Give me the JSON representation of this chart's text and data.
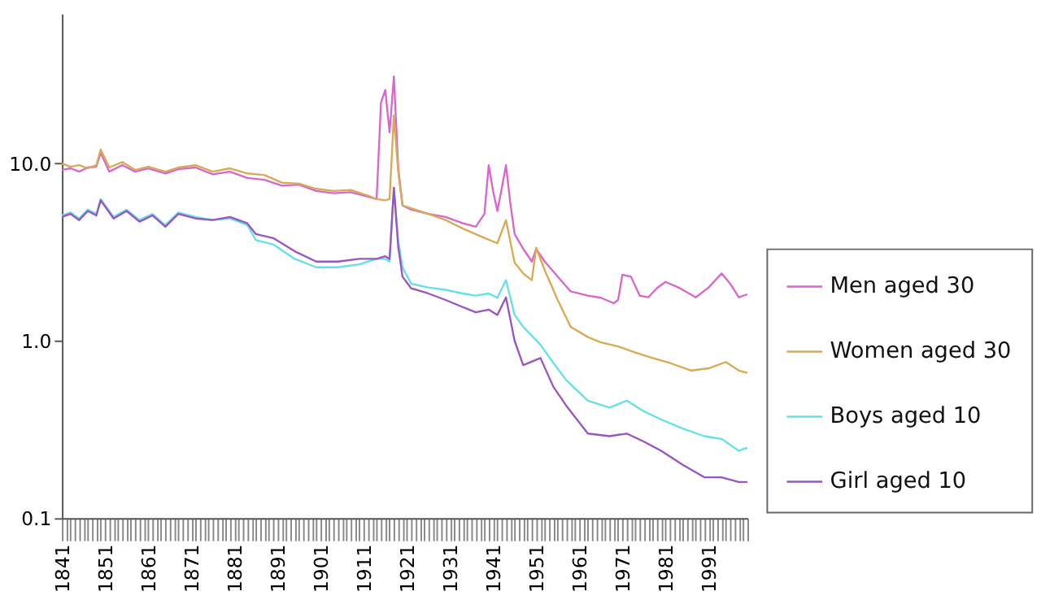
{
  "chart_data": {
    "type": "line",
    "log": "y",
    "grid": false,
    "legend": "right",
    "marker": "none",
    "line_style": "solid",
    "xlim": [
      1841,
      2000
    ],
    "ylim": [
      0.1,
      70
    ],
    "yticks": [
      {
        "value": 0.1,
        "label": "0.1"
      },
      {
        "value": 1,
        "label": "1.0"
      },
      {
        "value": 10,
        "label": "10.0"
      }
    ],
    "xticks": [
      1841,
      {
        "value": 1842,
        "label": null
      },
      {
        "value": 1843,
        "label": null
      },
      {
        "value": 1844,
        "label": null
      },
      {
        "value": 1845,
        "label": null
      },
      {
        "value": 1846,
        "label": null
      },
      {
        "value": 1847,
        "label": null
      },
      {
        "value": 1848,
        "label": null
      },
      {
        "value": 1849,
        "label": null
      },
      {
        "value": 1850,
        "label": null
      },
      1851,
      {
        "value": 1852,
        "label": null
      },
      {
        "value": 1853,
        "label": null
      },
      {
        "value": 1854,
        "label": null
      },
      {
        "value": 1855,
        "label": null
      },
      {
        "value": 1856,
        "label": null
      },
      {
        "value": 1857,
        "label": null
      },
      {
        "value": 1858,
        "label": null
      },
      {
        "value": 1859,
        "label": null
      },
      {
        "value": 1860,
        "label": null
      },
      1861,
      {
        "value": 1862,
        "label": null
      },
      {
        "value": 1863,
        "label": null
      },
      {
        "value": 1864,
        "label": null
      },
      {
        "value": 1865,
        "label": null
      },
      {
        "value": 1866,
        "label": null
      },
      {
        "value": 1867,
        "label": null
      },
      {
        "value": 1868,
        "label": null
      },
      {
        "value": 1869,
        "label": null
      },
      {
        "value": 1870,
        "label": null
      },
      1871,
      {
        "value": 1872,
        "label": null
      },
      {
        "value": 1873,
        "label": null
      },
      {
        "value": 1874,
        "label": null
      },
      {
        "value": 1875,
        "label": null
      },
      {
        "value": 1876,
        "label": null
      },
      {
        "value": 1877,
        "label": null
      },
      {
        "value": 1878,
        "label": null
      },
      {
        "value": 1879,
        "label": null
      },
      {
        "value": 1880,
        "label": null
      },
      1881,
      {
        "value": 1882,
        "label": null
      },
      {
        "value": 1883,
        "label": null
      },
      {
        "value": 1884,
        "label": null
      },
      {
        "value": 1885,
        "label": null
      },
      {
        "value": 1886,
        "label": null
      },
      {
        "value": 1887,
        "label": null
      },
      {
        "value": 1888,
        "label": null
      },
      {
        "value": 1889,
        "label": null
      },
      {
        "value": 1890,
        "label": null
      },
      1891,
      {
        "value": 1892,
        "label": null
      },
      {
        "value": 1893,
        "label": null
      },
      {
        "value": 1894,
        "label": null
      },
      {
        "value": 1895,
        "label": null
      },
      {
        "value": 1896,
        "label": null
      },
      {
        "value": 1897,
        "label": null
      },
      {
        "value": 1898,
        "label": null
      },
      {
        "value": 1899,
        "label": null
      },
      {
        "value": 1900,
        "label": null
      },
      1901,
      {
        "value": 1902,
        "label": null
      },
      {
        "value": 1903,
        "label": null
      },
      {
        "value": 1904,
        "label": null
      },
      {
        "value": 1905,
        "label": null
      },
      {
        "value": 1906,
        "label": null
      },
      {
        "value": 1907,
        "label": null
      },
      {
        "value": 1908,
        "label": null
      },
      {
        "value": 1909,
        "label": null
      },
      {
        "value": 1910,
        "label": null
      },
      1911,
      {
        "value": 1912,
        "label": null
      },
      {
        "value": 1913,
        "label": null
      },
      {
        "value": 1914,
        "label": null
      },
      {
        "value": 1915,
        "label": null
      },
      {
        "value": 1916,
        "label": null
      },
      {
        "value": 1917,
        "label": null
      },
      {
        "value": 1918,
        "label": null
      },
      {
        "value": 1919,
        "label": null
      },
      {
        "value": 1920,
        "label": null
      },
      1921,
      {
        "value": 1922,
        "label": null
      },
      {
        "value": 1923,
        "label": null
      },
      {
        "value": 1924,
        "label": null
      },
      {
        "value": 1925,
        "label": null
      },
      {
        "value": 1926,
        "label": null
      },
      {
        "value": 1927,
        "label": null
      },
      {
        "value": 1928,
        "label": null
      },
      {
        "value": 1929,
        "label": null
      },
      {
        "value": 1930,
        "label": null
      },
      1931,
      {
        "value": 1932,
        "label": null
      },
      {
        "value": 1933,
        "label": null
      },
      {
        "value": 1934,
        "label": null
      },
      {
        "value": 1935,
        "label": null
      },
      {
        "value": 1936,
        "label": null
      },
      {
        "value": 1937,
        "label": null
      },
      {
        "value": 1938,
        "label": null
      },
      {
        "value": 1939,
        "label": null
      },
      {
        "value": 1940,
        "label": null
      },
      1941,
      {
        "value": 1942,
        "label": null
      },
      {
        "value": 1943,
        "label": null
      },
      {
        "value": 1944,
        "label": null
      },
      {
        "value": 1945,
        "label": null
      },
      {
        "value": 1946,
        "label": null
      },
      {
        "value": 1947,
        "label": null
      },
      {
        "value": 1948,
        "label": null
      },
      {
        "value": 1949,
        "label": null
      },
      {
        "value": 1950,
        "label": null
      },
      1951,
      {
        "value": 1952,
        "label": null
      },
      {
        "value": 1953,
        "label": null
      },
      {
        "value": 1954,
        "label": null
      },
      {
        "value": 1955,
        "label": null
      },
      {
        "value": 1956,
        "label": null
      },
      {
        "value": 1957,
        "label": null
      },
      {
        "value": 1958,
        "label": null
      },
      {
        "value": 1959,
        "label": null
      },
      {
        "value": 1960,
        "label": null
      },
      1961,
      {
        "value": 1962,
        "label": null
      },
      {
        "value": 1963,
        "label": null
      },
      {
        "value": 1964,
        "label": null
      },
      {
        "value": 1965,
        "label": null
      },
      {
        "value": 1966,
        "label": null
      },
      {
        "value": 1967,
        "label": null
      },
      {
        "value": 1968,
        "label": null
      },
      {
        "value": 1969,
        "label": null
      },
      {
        "value": 1970,
        "label": null
      },
      1971,
      {
        "value": 1972,
        "label": null
      },
      {
        "value": 1973,
        "label": null
      },
      {
        "value": 1974,
        "label": null
      },
      {
        "value": 1975,
        "label": null
      },
      {
        "value": 1976,
        "label": null
      },
      {
        "value": 1977,
        "label": null
      },
      {
        "value": 1978,
        "label": null
      },
      {
        "value": 1979,
        "label": null
      },
      {
        "value": 1980,
        "label": null
      },
      1981,
      {
        "value": 1982,
        "label": null
      },
      {
        "value": 1983,
        "label": null
      },
      {
        "value": 1984,
        "label": null
      },
      {
        "value": 1985,
        "label": null
      },
      {
        "value": 1986,
        "label": null
      },
      {
        "value": 1987,
        "label": null
      },
      {
        "value": 1988,
        "label": null
      },
      {
        "value": 1989,
        "label": null
      },
      {
        "value": 1990,
        "label": null
      },
      1991,
      {
        "value": 1992,
        "label": null
      },
      {
        "value": 1993,
        "label": null
      },
      {
        "value": 1994,
        "label": null
      },
      {
        "value": 1995,
        "label": null
      },
      {
        "value": 1996,
        "label": null
      },
      {
        "value": 1997,
        "label": null
      },
      {
        "value": 1998,
        "label": null
      },
      {
        "value": 1999,
        "label": null
      },
      {
        "value": 2000,
        "label": null
      }
    ],
    "series": [
      {
        "name": "Men aged 30",
        "color": "#d966cc",
        "x": [
          1841,
          1843,
          1845,
          1847,
          1849,
          1850,
          1852,
          1855,
          1858,
          1861,
          1865,
          1868,
          1872,
          1876,
          1880,
          1884,
          1888,
          1892,
          1896,
          1900,
          1904,
          1908,
          1912,
          1914,
          1915,
          1916,
          1917,
          1918,
          1919,
          1920,
          1922,
          1926,
          1930,
          1934,
          1937,
          1939,
          1940,
          1941,
          1942,
          1943,
          1944,
          1945,
          1946,
          1948,
          1950,
          1951,
          1953,
          1956,
          1959,
          1963,
          1966,
          1969,
          1970,
          1971,
          1973,
          1975,
          1977,
          1979,
          1981,
          1984,
          1988,
          1991,
          1994,
          1996,
          1998,
          2000
        ],
        "values": [
          9.2,
          9.4,
          9.0,
          9.5,
          9.6,
          11.5,
          9.0,
          9.8,
          9.0,
          9.4,
          8.8,
          9.3,
          9.5,
          8.7,
          9.0,
          8.3,
          8.1,
          7.5,
          7.6,
          7.0,
          6.8,
          6.9,
          6.5,
          6.3,
          22,
          26,
          15,
          31,
          9.5,
          5.8,
          5.5,
          5.2,
          5.0,
          4.6,
          4.4,
          5.2,
          9.8,
          7.0,
          5.4,
          7.2,
          9.8,
          6.0,
          4.0,
          3.3,
          2.8,
          3.3,
          2.8,
          2.3,
          1.9,
          1.8,
          1.75,
          1.63,
          1.7,
          2.36,
          2.3,
          1.8,
          1.76,
          1.98,
          2.15,
          2.0,
          1.76,
          2.0,
          2.4,
          2.1,
          1.76,
          1.83
        ]
      },
      {
        "name": "Women aged 30",
        "color": "#d9aa55",
        "x": [
          1841,
          1843,
          1845,
          1847,
          1849,
          1850,
          1852,
          1855,
          1858,
          1861,
          1865,
          1868,
          1872,
          1876,
          1880,
          1884,
          1888,
          1892,
          1896,
          1900,
          1904,
          1908,
          1912,
          1914,
          1916,
          1917,
          1918,
          1919,
          1920,
          1922,
          1926,
          1930,
          1934,
          1938,
          1942,
          1944,
          1946,
          1948,
          1950,
          1951,
          1953,
          1956,
          1959,
          1963,
          1966,
          1970,
          1974,
          1978,
          1982,
          1987,
          1991,
          1995,
          1998,
          2000
        ],
        "values": [
          10.0,
          9.6,
          9.8,
          9.4,
          9.8,
          12.0,
          9.5,
          10.2,
          9.2,
          9.6,
          9.0,
          9.5,
          9.8,
          9.0,
          9.4,
          8.8,
          8.6,
          7.8,
          7.7,
          7.2,
          7.0,
          7.1,
          6.6,
          6.3,
          6.2,
          6.3,
          18.7,
          9.0,
          5.8,
          5.6,
          5.2,
          4.8,
          4.3,
          3.9,
          3.55,
          4.8,
          2.76,
          2.4,
          2.2,
          3.35,
          2.5,
          1.7,
          1.2,
          1.05,
          0.98,
          0.93,
          0.86,
          0.8,
          0.75,
          0.68,
          0.7,
          0.76,
          0.68,
          0.66
        ]
      },
      {
        "name": "Boys aged 10",
        "color": "#66e0e8",
        "x": [
          1841,
          1843,
          1845,
          1847,
          1849,
          1850,
          1853,
          1856,
          1859,
          1862,
          1865,
          1868,
          1872,
          1876,
          1880,
          1884,
          1886,
          1890,
          1895,
          1900,
          1905,
          1910,
          1914,
          1916,
          1917,
          1918,
          1919,
          1920,
          1922,
          1926,
          1930,
          1934,
          1937,
          1940,
          1942,
          1944,
          1946,
          1948,
          1952,
          1955,
          1958,
          1963,
          1968,
          1972,
          1976,
          1980,
          1985,
          1990,
          1994,
          1998,
          2000
        ],
        "values": [
          5.1,
          5.3,
          4.9,
          5.5,
          5.2,
          6.3,
          5.0,
          5.5,
          4.8,
          5.2,
          4.5,
          5.3,
          5.0,
          4.8,
          4.9,
          4.5,
          3.7,
          3.5,
          2.9,
          2.6,
          2.6,
          2.7,
          2.9,
          2.9,
          2.8,
          7.3,
          3.7,
          2.6,
          2.1,
          2.0,
          1.94,
          1.85,
          1.8,
          1.85,
          1.75,
          2.2,
          1.4,
          1.2,
          0.95,
          0.75,
          0.6,
          0.46,
          0.42,
          0.46,
          0.4,
          0.36,
          0.32,
          0.29,
          0.28,
          0.24,
          0.25
        ]
      },
      {
        "name": "Girl aged 10",
        "color": "#9955c0",
        "x": [
          1841,
          1843,
          1845,
          1847,
          1849,
          1850,
          1853,
          1856,
          1859,
          1862,
          1865,
          1868,
          1872,
          1876,
          1880,
          1884,
          1886,
          1890,
          1895,
          1900,
          1905,
          1910,
          1914,
          1916,
          1917,
          1918,
          1919,
          1920,
          1922,
          1926,
          1930,
          1934,
          1937,
          1940,
          1942,
          1944,
          1946,
          1948,
          1952,
          1955,
          1958,
          1963,
          1968,
          1972,
          1976,
          1980,
          1985,
          1990,
          1994,
          1998,
          2000
        ],
        "values": [
          5.0,
          5.2,
          4.8,
          5.4,
          5.1,
          6.2,
          4.9,
          5.4,
          4.7,
          5.1,
          4.4,
          5.2,
          4.9,
          4.8,
          5.0,
          4.6,
          4.0,
          3.8,
          3.2,
          2.8,
          2.8,
          2.9,
          2.9,
          3.0,
          2.9,
          7.3,
          3.4,
          2.3,
          1.98,
          1.85,
          1.7,
          1.55,
          1.45,
          1.5,
          1.4,
          1.76,
          1.0,
          0.73,
          0.8,
          0.55,
          0.43,
          0.3,
          0.29,
          0.3,
          0.27,
          0.24,
          0.2,
          0.17,
          0.17,
          0.16,
          0.16
        ]
      }
    ]
  }
}
